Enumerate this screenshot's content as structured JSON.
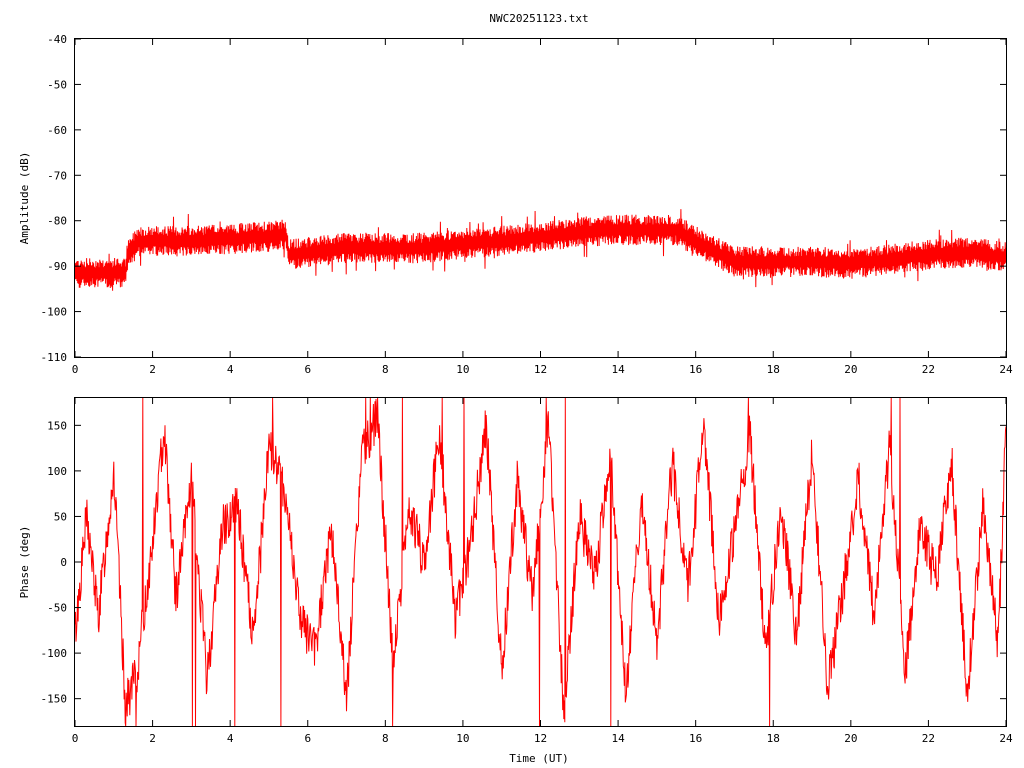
{
  "title": "NWC20251123.txt",
  "colors": {
    "series": "#ff0000",
    "axis": "#000000",
    "background": "#ffffff"
  },
  "chart_data": [
    {
      "type": "line",
      "title": "NWC20251123.txt",
      "xlabel": "",
      "ylabel": "Amplitude (dB)",
      "xlim": [
        0,
        24
      ],
      "ylim": [
        -110,
        -40
      ],
      "xticks": [
        0,
        2,
        4,
        6,
        8,
        10,
        12,
        14,
        16,
        18,
        20,
        22,
        24
      ],
      "yticks": [
        -110,
        -100,
        -90,
        -80,
        -70,
        -60,
        -50,
        -40
      ],
      "grid": false,
      "series": [
        {
          "x": [
            0,
            0.5,
            1,
            1.3,
            1.35,
            1.6,
            2,
            3,
            4,
            5,
            5.45,
            5.5,
            6,
            7,
            8,
            9,
            10,
            11,
            12,
            13,
            14,
            15,
            15.5,
            16,
            17,
            18,
            19,
            20,
            21,
            22,
            23,
            24
          ],
          "y": [
            -91.5,
            -91.5,
            -91.5,
            -91.5,
            -88,
            -84.5,
            -84.5,
            -84.5,
            -84,
            -83.5,
            -83,
            -87.5,
            -87,
            -86,
            -86,
            -86,
            -85,
            -84.5,
            -83.5,
            -82.5,
            -82,
            -82,
            -82,
            -84.5,
            -89,
            -89,
            -89,
            -89.5,
            -88.5,
            -87.5,
            -87,
            -88
          ],
          "band": 4.5
        }
      ]
    },
    {
      "type": "line",
      "xlabel": "Time (UT)",
      "ylabel": "Phase (deg)",
      "xlim": [
        0,
        24
      ],
      "ylim": [
        -180,
        180
      ],
      "xticks": [
        0,
        2,
        4,
        6,
        8,
        10,
        12,
        14,
        16,
        18,
        20,
        22,
        24
      ],
      "yticks": [
        -150,
        -100,
        -50,
        0,
        50,
        100,
        150
      ],
      "grid": false,
      "series": [
        {
          "x": [
            0,
            0.3,
            0.6,
            1.0,
            1.3,
            1.6,
            2.0,
            2.3,
            2.6,
            3.0,
            3.4,
            3.8,
            4.2,
            4.6,
            5.0,
            5.4,
            5.8,
            6.2,
            6.6,
            7.0,
            7.4,
            7.8,
            8.2,
            8.6,
            9.0,
            9.4,
            9.8,
            10.2,
            10.6,
            11.0,
            11.4,
            11.8,
            12.2,
            12.6,
            13.0,
            13.4,
            13.8,
            14.2,
            14.6,
            15.0,
            15.4,
            15.8,
            16.2,
            16.6,
            17.0,
            17.4,
            17.8,
            18.2,
            18.6,
            19.0,
            19.4,
            19.8,
            20.2,
            20.6,
            21.0,
            21.4,
            21.8,
            22.2,
            22.6,
            23.0,
            23.4,
            23.8,
            24.0
          ],
          "y": [
            -80,
            50,
            -60,
            100,
            -160,
            -120,
            20,
            150,
            -40,
            90,
            -130,
            40,
            60,
            -90,
            130,
            80,
            -60,
            -100,
            40,
            -150,
            120,
            160,
            -110,
            60,
            0,
            140,
            -60,
            20,
            150,
            -120,
            90,
            -40,
            160,
            -170,
            50,
            -20,
            120,
            -150,
            70,
            -90,
            110,
            -30,
            150,
            -60,
            30,
            140,
            -100,
            60,
            -80,
            120,
            -140,
            -30,
            90,
            -60,
            130,
            -120,
            40,
            -20,
            110,
            -150,
            60,
            -90,
            150
          ]
        }
      ]
    }
  ]
}
